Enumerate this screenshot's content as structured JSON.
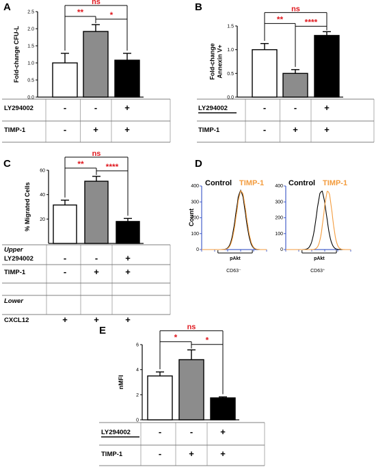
{
  "chart_data": [
    {
      "panel": "A",
      "type": "bar",
      "ylabel": "Fold-change CFU-L",
      "ylim": [
        0,
        2.5
      ],
      "yticks": [
        "0.0",
        "0.5",
        "1.0",
        "1.5",
        "2.0",
        "2.5"
      ],
      "values": [
        1.0,
        1.92,
        1.08
      ],
      "errors": [
        0.28,
        0.2,
        0.2
      ],
      "bar_colors": [
        "#ffffff",
        "#8c8c8c",
        "#000000"
      ],
      "significance": [
        {
          "from": 0,
          "to": 1,
          "label": "**"
        },
        {
          "from": 1,
          "to": 2,
          "label": "*"
        },
        {
          "from": 0,
          "to": 2,
          "label": "ns"
        }
      ],
      "conditions": [
        {
          "label": "LY294002",
          "values": [
            "-",
            "-",
            "+"
          ]
        },
        {
          "label": "TIMP-1",
          "values": [
            "-",
            "+",
            "+"
          ]
        }
      ]
    },
    {
      "panel": "B",
      "type": "bar",
      "ylabel": "Fold-change Annexin V+",
      "ylim": [
        0,
        1.5
      ],
      "yticks": [
        "0.0",
        "0.5",
        "1.0",
        "1.5"
      ],
      "values": [
        1.0,
        0.5,
        1.3
      ],
      "errors": [
        0.13,
        0.08,
        0.08
      ],
      "bar_colors": [
        "#ffffff",
        "#8c8c8c",
        "#000000"
      ],
      "significance": [
        {
          "from": 0,
          "to": 1,
          "label": "**"
        },
        {
          "from": 1,
          "to": 2,
          "label": "****"
        },
        {
          "from": 0,
          "to": 2,
          "label": "ns"
        }
      ],
      "conditions": [
        {
          "label": "LY294002",
          "values": [
            "-",
            "-",
            "+"
          ]
        },
        {
          "label": "TIMP-1",
          "values": [
            "-",
            "+",
            "+"
          ]
        }
      ]
    },
    {
      "panel": "C",
      "type": "bar",
      "ylabel": "% Migrated Cells",
      "ylim": [
        0,
        60
      ],
      "yticks": [
        "20",
        "40",
        "60"
      ],
      "values": [
        31.5,
        51,
        18
      ],
      "errors": [
        4,
        4,
        2.5
      ],
      "bar_colors": [
        "#ffffff",
        "#8c8c8c",
        "#000000"
      ],
      "significance": [
        {
          "from": 0,
          "to": 1,
          "label": "**"
        },
        {
          "from": 1,
          "to": 2,
          "label": "****"
        },
        {
          "from": 0,
          "to": 2,
          "label": "ns"
        }
      ],
      "conditions": [
        {
          "label": "Upper",
          "values": [
            "",
            "",
            ""
          ]
        },
        {
          "label": "LY294002",
          "values": [
            "-",
            "-",
            "+"
          ]
        },
        {
          "label": "TIMP-1",
          "values": [
            "-",
            "+",
            "+"
          ]
        },
        {
          "label": "",
          "values": [
            "",
            "",
            ""
          ]
        },
        {
          "label": "Lower",
          "values": [
            "",
            "",
            ""
          ]
        },
        {
          "label": "CXCL12",
          "values": [
            "+",
            "+",
            "+"
          ]
        }
      ]
    },
    {
      "panel": "D",
      "type": "line",
      "ylabel": "Count",
      "plots": [
        {
          "xlabel": "pAkt",
          "subtitle": "CD63⁻",
          "series": [
            {
              "name": "Control",
              "color": "#000000",
              "center": 0.6,
              "width": 0.075
            },
            {
              "name": "TIMP-1",
              "color": "#f39b3c",
              "center": 0.61,
              "width": 0.075
            }
          ]
        },
        {
          "xlabel": "pAkt",
          "subtitle": "CD63⁺",
          "series": [
            {
              "name": "Control",
              "color": "#000000",
              "center": 0.55,
              "width": 0.075
            },
            {
              "name": "TIMP-1",
              "color": "#f39b3c",
              "center": 0.65,
              "width": 0.065
            }
          ]
        }
      ]
    },
    {
      "panel": "E",
      "type": "bar",
      "ylabel": "nMFI",
      "ylim": [
        0,
        6
      ],
      "yticks": [
        "0",
        "2",
        "4",
        "6"
      ],
      "values": [
        3.5,
        4.8,
        1.75
      ],
      "errors": [
        0.32,
        0.78,
        0.08
      ],
      "bar_colors": [
        "#ffffff",
        "#8c8c8c",
        "#000000"
      ],
      "significance": [
        {
          "from": 0,
          "to": 1,
          "label": "*"
        },
        {
          "from": 1,
          "to": 2,
          "label": "*"
        },
        {
          "from": 0,
          "to": 2,
          "label": "ns"
        }
      ],
      "conditions": [
        {
          "label": "LY294002",
          "values": [
            "-",
            "-",
            "+"
          ]
        },
        {
          "label": "TIMP-1",
          "values": [
            "-",
            "+",
            "+"
          ]
        }
      ]
    }
  ]
}
